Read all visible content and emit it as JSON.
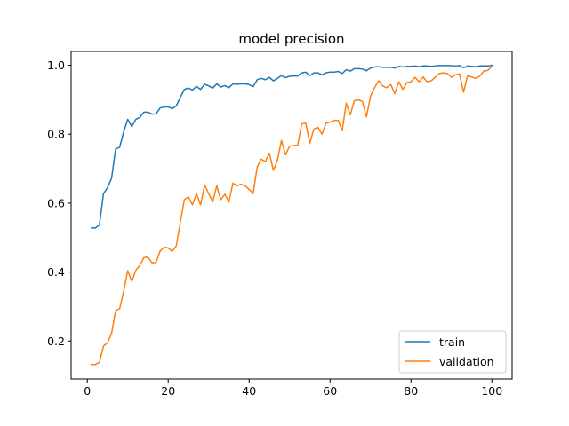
{
  "chart_data": {
    "type": "line",
    "title": "model precision",
    "xlabel": "",
    "ylabel": "",
    "xlim": [
      -4,
      105
    ],
    "ylim": [
      0.09,
      1.04
    ],
    "xticks": [
      0,
      20,
      40,
      60,
      80,
      100
    ],
    "yticks": [
      0.2,
      0.4,
      0.6,
      0.8,
      1.0
    ],
    "xtick_labels": [
      "0",
      "20",
      "40",
      "60",
      "80",
      "100"
    ],
    "ytick_labels": [
      "0.2",
      "0.4",
      "0.6",
      "0.8",
      "1.0"
    ],
    "grid": false,
    "legend": "lower-right",
    "x": [
      1,
      2,
      3,
      4,
      5,
      6,
      7,
      8,
      9,
      10,
      11,
      12,
      13,
      14,
      15,
      16,
      17,
      18,
      19,
      20,
      21,
      22,
      23,
      24,
      25,
      26,
      27,
      28,
      29,
      30,
      31,
      32,
      33,
      34,
      35,
      36,
      37,
      38,
      39,
      40,
      41,
      42,
      43,
      44,
      45,
      46,
      47,
      48,
      49,
      50,
      51,
      52,
      53,
      54,
      55,
      56,
      57,
      58,
      59,
      60,
      61,
      62,
      63,
      64,
      65,
      66,
      67,
      68,
      69,
      70,
      71,
      72,
      73,
      74,
      75,
      76,
      77,
      78,
      79,
      80,
      81,
      82,
      83,
      84,
      85,
      86,
      87,
      88,
      89,
      90,
      91,
      92,
      93,
      94,
      95,
      96,
      97,
      98,
      99,
      100
    ],
    "series": [
      {
        "name": "train",
        "color": "#1f77b4",
        "values": [
          0.528,
          0.528,
          0.537,
          0.627,
          0.645,
          0.672,
          0.757,
          0.762,
          0.807,
          0.843,
          0.822,
          0.843,
          0.849,
          0.864,
          0.864,
          0.858,
          0.859,
          0.876,
          0.879,
          0.879,
          0.874,
          0.882,
          0.907,
          0.93,
          0.934,
          0.928,
          0.939,
          0.93,
          0.945,
          0.94,
          0.934,
          0.946,
          0.937,
          0.941,
          0.935,
          0.946,
          0.945,
          0.946,
          0.946,
          0.944,
          0.938,
          0.958,
          0.962,
          0.958,
          0.965,
          0.955,
          0.962,
          0.97,
          0.964,
          0.968,
          0.969,
          0.969,
          0.978,
          0.98,
          0.97,
          0.978,
          0.978,
          0.972,
          0.978,
          0.98,
          0.98,
          0.982,
          0.976,
          0.987,
          0.983,
          0.99,
          0.99,
          0.989,
          0.984,
          0.992,
          0.995,
          0.996,
          0.994,
          0.994,
          0.994,
          0.992,
          0.997,
          0.995,
          0.997,
          0.997,
          0.998,
          0.996,
          0.998,
          0.998,
          0.997,
          0.998,
          0.999,
          0.999,
          0.999,
          0.999,
          0.998,
          0.999,
          0.993,
          0.998,
          0.997,
          0.996,
          0.998,
          0.998,
          0.998,
          1.0
        ]
      },
      {
        "name": "validation",
        "color": "#ff7f0e",
        "values": [
          0.132,
          0.132,
          0.138,
          0.185,
          0.195,
          0.222,
          0.288,
          0.294,
          0.345,
          0.404,
          0.373,
          0.405,
          0.42,
          0.442,
          0.443,
          0.427,
          0.428,
          0.461,
          0.472,
          0.47,
          0.46,
          0.476,
          0.545,
          0.61,
          0.618,
          0.595,
          0.628,
          0.595,
          0.653,
          0.628,
          0.604,
          0.65,
          0.61,
          0.626,
          0.603,
          0.658,
          0.65,
          0.655,
          0.65,
          0.64,
          0.628,
          0.705,
          0.728,
          0.72,
          0.745,
          0.695,
          0.725,
          0.782,
          0.74,
          0.765,
          0.767,
          0.768,
          0.83,
          0.832,
          0.773,
          0.815,
          0.82,
          0.8,
          0.832,
          0.835,
          0.84,
          0.84,
          0.81,
          0.89,
          0.856,
          0.897,
          0.9,
          0.895,
          0.85,
          0.91,
          0.935,
          0.955,
          0.94,
          0.935,
          0.944,
          0.918,
          0.952,
          0.93,
          0.95,
          0.952,
          0.965,
          0.952,
          0.966,
          0.952,
          0.955,
          0.965,
          0.976,
          0.978,
          0.976,
          0.965,
          0.972,
          0.975,
          0.922,
          0.97,
          0.966,
          0.962,
          0.968,
          0.983,
          0.985,
          0.997
        ]
      }
    ]
  }
}
